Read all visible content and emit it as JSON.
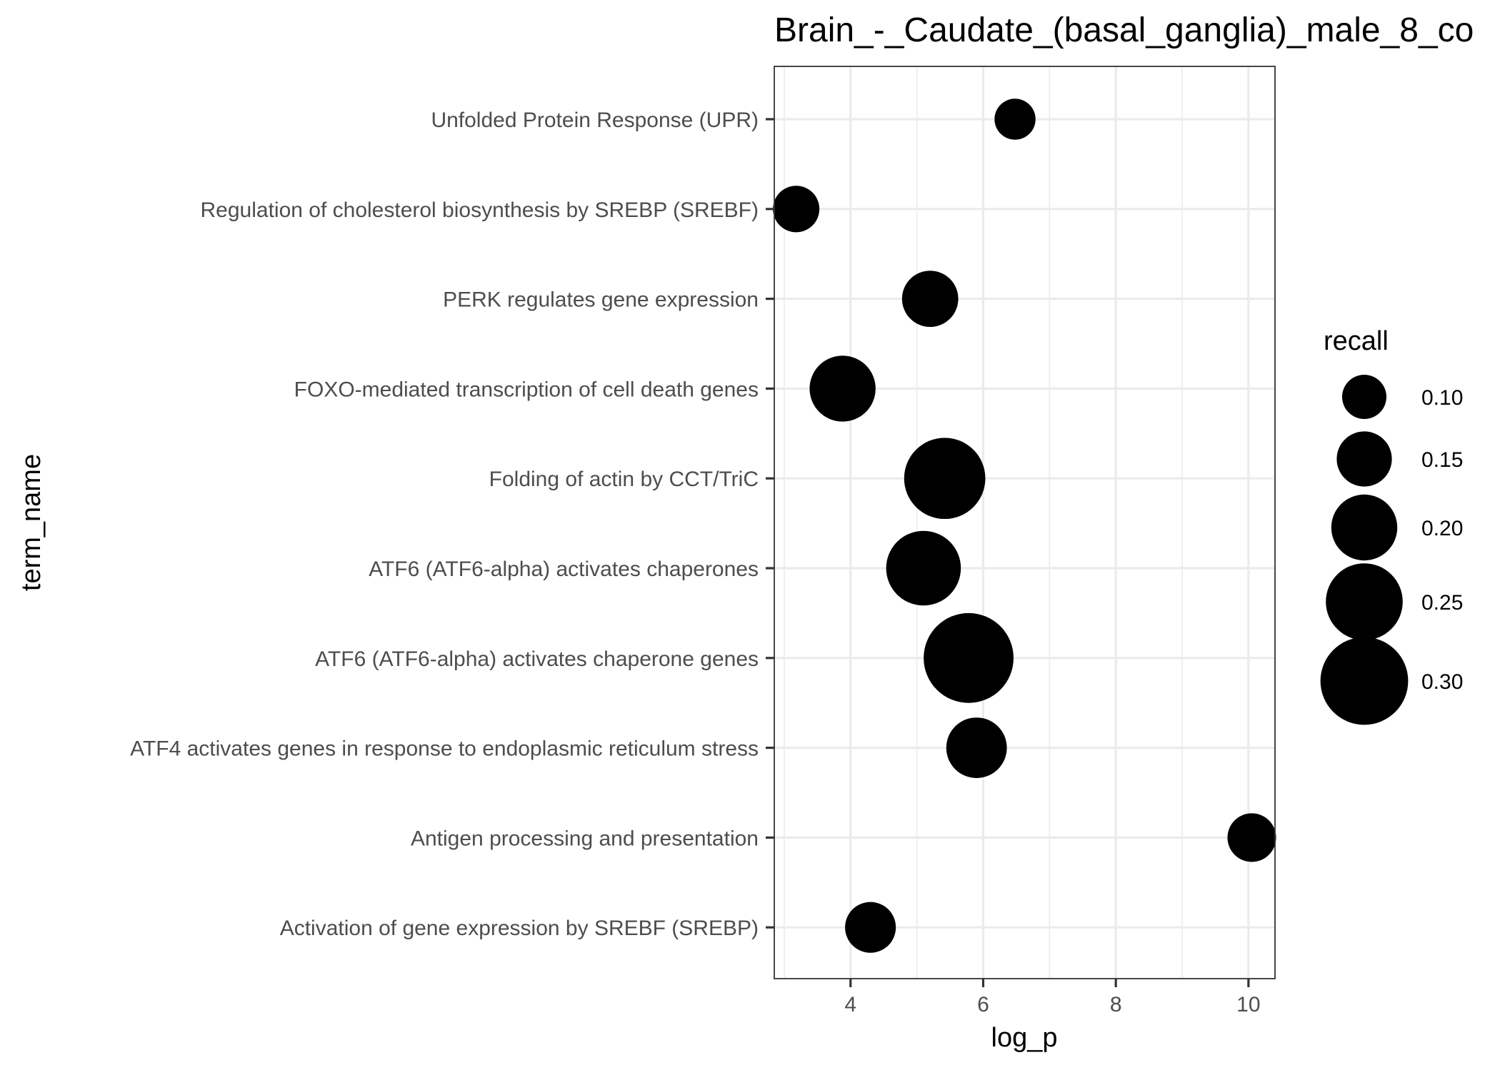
{
  "chart_data": {
    "type": "scatter",
    "title": "Brain_-_Caudate_(basal_ganglia)_male_8_co",
    "xlabel": "log_p",
    "ylabel": "term_name",
    "xlim": [
      2.85,
      10.4
    ],
    "x_ticks": [
      "4",
      "6",
      "8",
      "10"
    ],
    "grid": true,
    "legend": {
      "title": "recall",
      "placement": "right",
      "entries": [
        {
          "label": "0.10",
          "value": 0.1
        },
        {
          "label": "0.15",
          "value": 0.15
        },
        {
          "label": "0.20",
          "value": 0.2
        },
        {
          "label": "0.25",
          "value": 0.25
        },
        {
          "label": "0.30",
          "value": 0.3
        }
      ]
    },
    "points": [
      {
        "term": "Unfolded Protein Response (UPR)",
        "log_p": 6.48,
        "recall": 0.085
      },
      {
        "term": "Regulation of cholesterol biosynthesis by SREBP (SREBF)",
        "log_p": 3.18,
        "recall": 0.11
      },
      {
        "term": "PERK regulates gene expression",
        "log_p": 5.2,
        "recall": 0.155
      },
      {
        "term": "FOXO-mediated transcription of cell death genes",
        "log_p": 3.88,
        "recall": 0.2
      },
      {
        "term": "Folding of actin by CCT/TriC",
        "log_p": 5.42,
        "recall": 0.27
      },
      {
        "term": "ATF6 (ATF6-alpha) activates chaperones",
        "log_p": 5.1,
        "recall": 0.24
      },
      {
        "term": "ATF6 (ATF6-alpha) activates chaperone genes",
        "log_p": 5.78,
        "recall": 0.31
      },
      {
        "term": "ATF4 activates genes in response to endoplasmic reticulum  stress",
        "log_p": 5.9,
        "recall": 0.175
      },
      {
        "term": "Antigen processing and presentation",
        "log_p": 10.05,
        "recall": 0.12
      },
      {
        "term": "Activation of gene expression by SREBF (SREBP)",
        "log_p": 4.3,
        "recall": 0.13
      }
    ]
  }
}
